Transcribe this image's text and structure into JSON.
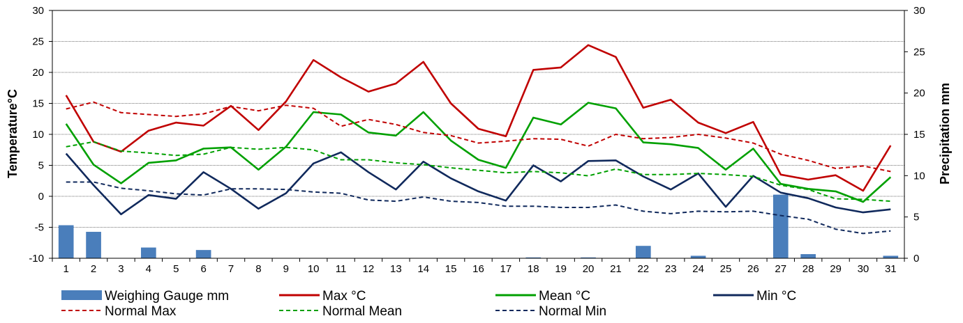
{
  "chart_data": {
    "type": "bar+line",
    "title": "",
    "x": [
      1,
      2,
      3,
      4,
      5,
      6,
      7,
      8,
      9,
      10,
      11,
      12,
      13,
      14,
      15,
      16,
      17,
      18,
      19,
      20,
      21,
      22,
      23,
      24,
      25,
      26,
      27,
      28,
      29,
      30,
      31
    ],
    "y_left": {
      "label": "Temperature°C",
      "range": [
        -10,
        30
      ],
      "ticks": [
        -10,
        -5,
        0,
        5,
        10,
        15,
        20,
        25,
        30
      ]
    },
    "y_right": {
      "label": "Precipitation mm",
      "range": [
        0,
        30
      ],
      "ticks": [
        0,
        5,
        10,
        15,
        20,
        25,
        30
      ]
    },
    "grid": true,
    "legend_position": "bottom",
    "bars": {
      "name": "Weighing Gauge mm",
      "axis": "right",
      "color": "#4a7ebb",
      "values": [
        4.0,
        3.2,
        0,
        1.3,
        0,
        1.0,
        0,
        0,
        0,
        0,
        0,
        0,
        0,
        0,
        0,
        0,
        0,
        0.1,
        0,
        0.1,
        0,
        1.5,
        0,
        0.3,
        0,
        0,
        7.7,
        0.5,
        0,
        0,
        0.3
      ]
    },
    "series": [
      {
        "name": "Max °C",
        "color": "#c00000",
        "style": "solid",
        "values": [
          16.3,
          8.8,
          7.2,
          10.6,
          11.9,
          11.4,
          14.6,
          10.7,
          15.3,
          22.0,
          19.2,
          16.9,
          18.2,
          21.7,
          15.0,
          10.9,
          9.7,
          20.4,
          20.8,
          24.4,
          22.5,
          14.3,
          15.6,
          11.9,
          10.2,
          12.0,
          3.5,
          2.7,
          3.4,
          0.9,
          8.2
        ]
      },
      {
        "name": "Mean °C",
        "color": "#00a000",
        "style": "solid",
        "values": [
          11.7,
          5.1,
          2.1,
          5.4,
          5.8,
          7.7,
          7.9,
          4.3,
          8.0,
          13.6,
          13.2,
          10.3,
          9.8,
          13.6,
          9.0,
          5.9,
          4.6,
          12.7,
          11.6,
          15.1,
          14.2,
          8.7,
          8.4,
          7.8,
          4.3,
          7.7,
          2.0,
          1.2,
          0.8,
          -0.9,
          3.1
        ]
      },
      {
        "name": "Min °C",
        "color": "#10295c",
        "style": "solid",
        "values": [
          6.9,
          1.8,
          -2.9,
          0.2,
          -0.4,
          3.9,
          1.2,
          -2.0,
          0.5,
          5.3,
          7.1,
          3.9,
          1.1,
          5.6,
          2.9,
          0.8,
          -0.7,
          5.0,
          2.4,
          5.7,
          5.8,
          3.2,
          1.1,
          3.7,
          -1.7,
          3.3,
          0.6,
          -0.3,
          -1.8,
          -2.6,
          -2.1
        ]
      },
      {
        "name": "Normal Max",
        "color": "#c00000",
        "style": "dashed",
        "values": [
          14.1,
          15.2,
          13.5,
          13.2,
          12.9,
          13.3,
          14.5,
          13.8,
          14.7,
          14.2,
          11.3,
          12.4,
          11.6,
          10.3,
          9.8,
          8.6,
          8.9,
          9.3,
          9.2,
          8.1,
          10.0,
          9.3,
          9.5,
          10.0,
          9.4,
          8.6,
          6.8,
          5.8,
          4.5,
          4.9,
          4.0
        ]
      },
      {
        "name": "Normal Mean",
        "color": "#00a000",
        "style": "dashed",
        "values": [
          8.0,
          8.8,
          7.3,
          7.0,
          6.6,
          6.8,
          7.9,
          7.6,
          7.9,
          7.5,
          5.9,
          5.9,
          5.4,
          5.1,
          4.6,
          4.2,
          3.8,
          4.0,
          3.8,
          3.3,
          4.4,
          3.5,
          3.5,
          3.7,
          3.5,
          3.2,
          1.8,
          1.1,
          -0.4,
          -0.5,
          -0.8
        ]
      },
      {
        "name": "Normal Min",
        "color": "#10295c",
        "style": "dashed",
        "values": [
          2.3,
          2.3,
          1.3,
          0.9,
          0.4,
          0.2,
          1.2,
          1.2,
          1.1,
          0.7,
          0.5,
          -0.6,
          -0.8,
          -0.1,
          -0.8,
          -1.0,
          -1.6,
          -1.6,
          -1.8,
          -1.8,
          -1.4,
          -2.4,
          -2.8,
          -2.4,
          -2.5,
          -2.4,
          -3.1,
          -3.7,
          -5.3,
          -6.0,
          -5.6
        ]
      }
    ],
    "legend": [
      {
        "label": "Weighing Gauge mm",
        "kind": "bar",
        "color": "#4a7ebb"
      },
      {
        "label": "Max °C",
        "kind": "line",
        "color": "#c00000",
        "style": "solid"
      },
      {
        "label": "Mean °C",
        "kind": "line",
        "color": "#00a000",
        "style": "solid"
      },
      {
        "label": "Min °C",
        "kind": "line",
        "color": "#10295c",
        "style": "solid"
      },
      {
        "label": "Normal Max",
        "kind": "line",
        "color": "#c00000",
        "style": "dashed"
      },
      {
        "label": "Normal Mean",
        "kind": "line",
        "color": "#00a000",
        "style": "dashed"
      },
      {
        "label": "Normal Min",
        "kind": "line",
        "color": "#10295c",
        "style": "dashed"
      }
    ]
  }
}
